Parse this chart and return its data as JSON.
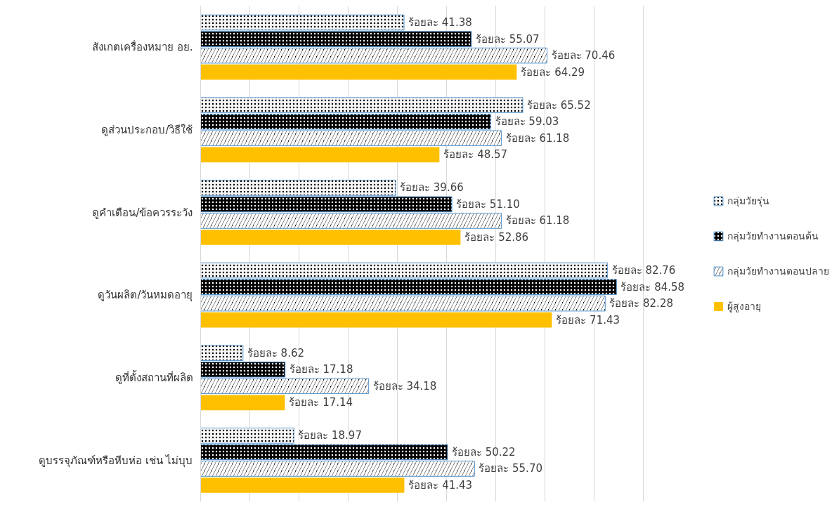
{
  "chart_data": {
    "type": "bar",
    "orientation": "horizontal",
    "categories": [
      "สังเกตเครื่องหมาย อย.",
      "ดูส่วนประกอบ/วิธีใช้",
      "ดูคำเตือน/ข้อควรระวัง",
      "ดูวันผลิต/วันหมดอายุ",
      "ดูที่ตั้งสถานที่ผลิต",
      "ดูบรรจุภัณฑ์หรือหีบห่อ เช่น ไม่บุบ"
    ],
    "series": [
      {
        "name": "กลุ่มวัยรุ่น",
        "color": "#f7f7f7",
        "values": [
          41.38,
          65.52,
          39.66,
          82.76,
          8.62,
          18.97
        ],
        "value_labels": [
          "ร้อยละ 41.38",
          "ร้อยละ 65.52",
          "ร้อยละ 39.66",
          "ร้อยละ 82.76",
          "ร้อยละ 8.62",
          "ร้อยละ 18.97"
        ]
      },
      {
        "name": "กลุ่มวัยทำงานตอนต้น",
        "color": "#000000",
        "values": [
          55.07,
          59.03,
          51.1,
          84.58,
          17.18,
          50.22
        ],
        "value_labels": [
          "ร้อยละ 55.07",
          "ร้อยละ 59.03",
          "ร้อยละ 51.10",
          "ร้อยละ 84.58",
          "ร้อยละ 17.18",
          "ร้อยละ 50.22"
        ]
      },
      {
        "name": "กลุ่มวัยทำงานตอนปลาย",
        "color": "#000001",
        "values": [
          70.46,
          61.18,
          61.18,
          82.28,
          34.18,
          55.7
        ],
        "value_labels": [
          "ร้อยละ 70.46",
          "ร้อยละ 61.18",
          "ร้อยละ 61.18",
          "ร้อยละ 82.28",
          "ร้อยละ 34.18",
          "ร้อยละ 55.70"
        ]
      },
      {
        "name": "ผู้สูงอายุ",
        "color": "#ffc000",
        "values": [
          64.29,
          48.57,
          52.86,
          71.43,
          17.14,
          41.43
        ],
        "value_labels": [
          "ร้อยละ 64.29",
          "ร้อยละ 48.57",
          "ร้อยละ 52.86",
          "ร้อยละ 71.43",
          "ร้อยละ 17.14",
          "ร้อยละ 41.43"
        ]
      }
    ],
    "xticks": [
      {
        "value": 0,
        "label": null
      },
      {
        "value": 10,
        "label": null
      },
      {
        "value": 20,
        "label": null
      },
      {
        "value": 30,
        "label": null
      },
      {
        "value": 40,
        "label": null
      },
      {
        "value": 50,
        "label": null
      },
      {
        "value": 60,
        "label": null
      },
      {
        "value": 70,
        "label": null
      },
      {
        "value": 80,
        "label": null
      },
      {
        "value": 90,
        "label": null
      }
    ],
    "tick_labels": "y",
    "grid": "x",
    "legend": "right"
  }
}
